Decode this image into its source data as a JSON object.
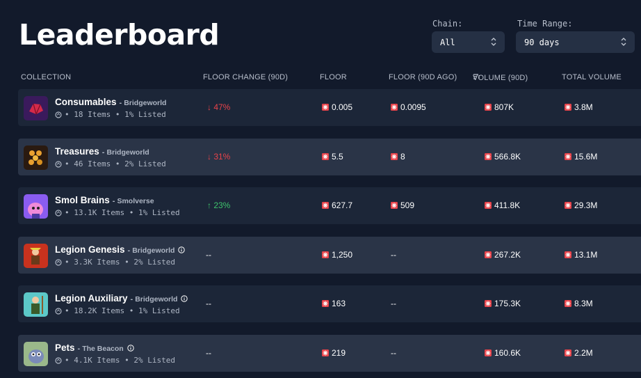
{
  "page": {
    "title": "Leaderboard"
  },
  "filters": {
    "chain": {
      "label": "Chain:",
      "value": "All"
    },
    "time_range": {
      "label": "Time Range:",
      "value": "90 days"
    }
  },
  "table": {
    "headers": {
      "collection": "COLLECTION",
      "floor_change": "FLOOR CHANGE (90D)",
      "floor": "FLOOR",
      "floor_ago": "FLOOR (90D AGO)",
      "volume": "VOLUME (90D)",
      "total_volume": "TOTAL VOLUME"
    },
    "rows": [
      {
        "name": "Consumables",
        "dash": "-",
        "project": "Bridgeworld",
        "info": false,
        "meta": "• 18 Items • 1% Listed",
        "change": "↓ 47%",
        "change_dir": "down",
        "floor": "0.005",
        "floor_ago": "0.0095",
        "volume": "807K",
        "total_volume": "3.8M",
        "icon": "consumables-icon",
        "thumb_color": "#3a1a5c"
      },
      {
        "name": "Treasures",
        "dash": "-",
        "project": "Bridgeworld",
        "info": false,
        "meta": "• 46 Items • 2% Listed",
        "change": "↓ 31%",
        "change_dir": "down",
        "floor": "5.5",
        "floor_ago": "8",
        "volume": "566.8K",
        "total_volume": "15.6M",
        "icon": "treasures-icon",
        "thumb_color": "#2a1a10"
      },
      {
        "name": "Smol Brains",
        "dash": "-",
        "project": "Smolverse",
        "info": false,
        "meta": "• 13.1K Items • 1% Listed",
        "change": "↑ 23%",
        "change_dir": "up",
        "floor": "627.7",
        "floor_ago": "509",
        "volume": "411.8K",
        "total_volume": "29.3M",
        "icon": "smol-brains-icon",
        "thumb_color": "#8a5cf0"
      },
      {
        "name": "Legion Genesis",
        "dash": "-",
        "project": "Bridgeworld",
        "info": true,
        "meta": "• 3.3K Items • 2% Listed",
        "change": "--",
        "change_dir": "none",
        "floor": "1,250",
        "floor_ago": "--",
        "volume": "267.2K",
        "total_volume": "13.1M",
        "icon": "legion-genesis-icon",
        "thumb_color": "#c8321e"
      },
      {
        "name": "Legion Auxiliary",
        "dash": "-",
        "project": "Bridgeworld",
        "info": true,
        "meta": "• 18.2K Items • 1% Listed",
        "change": "--",
        "change_dir": "none",
        "floor": "163",
        "floor_ago": "--",
        "volume": "175.3K",
        "total_volume": "8.3M",
        "icon": "legion-auxiliary-icon",
        "thumb_color": "#5cc8c8"
      },
      {
        "name": "Pets",
        "dash": "-",
        "project": "The Beacon",
        "info": true,
        "meta": "• 4.1K Items • 2% Listed",
        "change": "--",
        "change_dir": "none",
        "floor": "219",
        "floor_ago": "--",
        "volume": "160.6K",
        "total_volume": "2.2M",
        "icon": "pets-icon",
        "thumb_color": "#9ab88a"
      }
    ]
  },
  "colors": {
    "background": "#121a2b",
    "row_dark": "#1c2638",
    "row_light": "#2a3447",
    "down": "#e8434a",
    "up": "#3ec36c",
    "magic_badge": "#e8434a"
  }
}
